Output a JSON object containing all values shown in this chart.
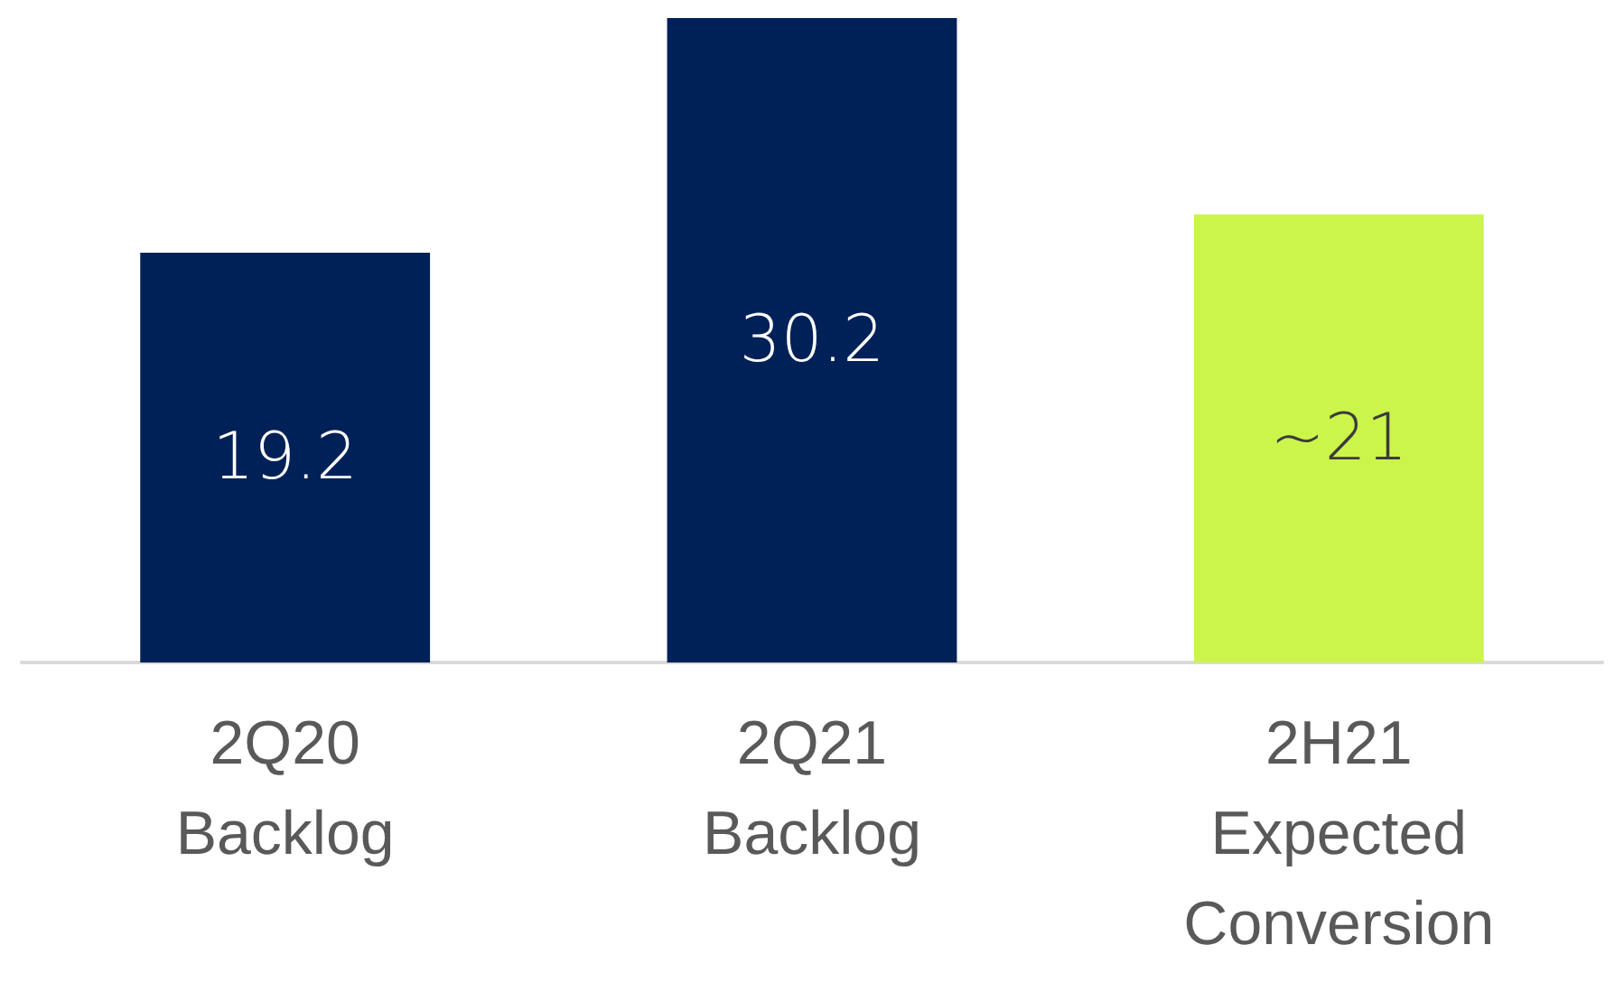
{
  "chart_data": {
    "type": "bar",
    "categories": [
      "2Q20\nBacklog",
      "2Q21\nBacklog",
      "2H21\nExpected\nConversion"
    ],
    "values": [
      19.2,
      30.2,
      21
    ],
    "colors": [
      "#002157",
      "#002157",
      "#ccf54b"
    ],
    "value_labels": [
      "19.2",
      "30.2",
      "~21"
    ],
    "grid": false
  }
}
